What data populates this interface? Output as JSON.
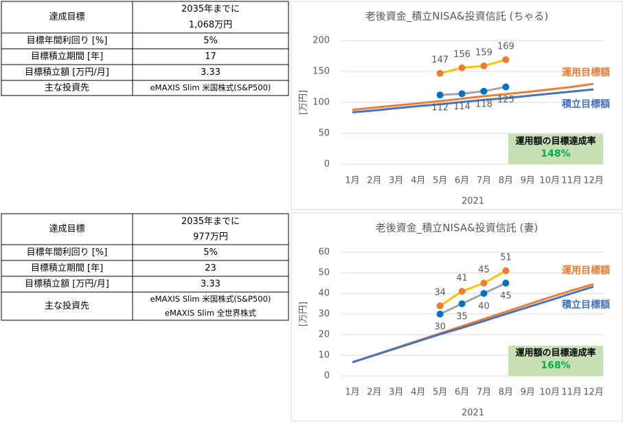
{
  "tables": [
    {
      "rows": [
        [
          "達成目標",
          [
            "2035年までに",
            "1,068万円"
          ]
        ],
        [
          "目標年間利回り [%]",
          "5%"
        ],
        [
          "目標積立期間 [年]",
          "17"
        ],
        [
          "目標積立額 [万円/月]",
          "3.33"
        ],
        [
          "主な投資先",
          "eMAXIS Slim 米国株式(S&P500)"
        ]
      ]
    },
    {
      "rows": [
        [
          "達成目標",
          [
            "2035年までに",
            "977万円"
          ]
        ],
        [
          "目標年間利回り [%]",
          "5%"
        ],
        [
          "目標積立期間 [年]",
          "23"
        ],
        [
          "目標積立額 [万円/月]",
          "3.33"
        ],
        [
          "主な投資先",
          [
            "eMAXIS Slim 米国株式(S&P500)",
            "eMAXIS Slim 全世界株式"
          ]
        ]
      ]
    }
  ],
  "chart_data": [
    {
      "type": "line",
      "title": "老後資金_積立NISA&投資信託 (ちゃる)",
      "categories": [
        "1月",
        "2月",
        "3月",
        "4月",
        "5月",
        "6月",
        "7月",
        "8月",
        "9月",
        "10月",
        "11月",
        "12月"
      ],
      "xlabel": "2021",
      "ylabel": "[万円]",
      "ylim": [
        0,
        200
      ],
      "yticks": [
        0,
        50,
        100,
        150,
        200
      ],
      "grid": true,
      "series": [
        {
          "name": "運用目標額",
          "color": "#ed7d31",
          "values": [
            88,
            91.5,
            95,
            98.5,
            102,
            106,
            110,
            113.5,
            117,
            121,
            125,
            130
          ]
        },
        {
          "name": "積立目標額",
          "color": "#4472c4",
          "values": [
            84,
            87,
            90.5,
            94,
            97,
            100.5,
            104,
            107,
            110.5,
            114,
            117.5,
            121
          ]
        },
        {
          "color": "#ffc000",
          "marker_color": "#ed7d31",
          "labels": "above",
          "values": [
            null,
            null,
            null,
            null,
            147,
            156,
            159,
            169,
            null,
            null,
            null,
            null
          ]
        },
        {
          "color": "#a5a5a5",
          "marker_color": "#0070c0",
          "labels": "below",
          "values": [
            null,
            null,
            null,
            null,
            112,
            114,
            118,
            125,
            null,
            null,
            null,
            null
          ]
        }
      ],
      "annotation": {
        "text": "運用額の目標達成率",
        "rate": "148%"
      }
    },
    {
      "type": "line",
      "title": "老後資金_積立NISA&投資信託 (妻)",
      "categories": [
        "1月",
        "2月",
        "3月",
        "4月",
        "5月",
        "6月",
        "7月",
        "8月",
        "9月",
        "10月",
        "11月",
        "12月"
      ],
      "xlabel": "2021",
      "ylabel": "[万円]",
      "ylim": [
        0,
        60
      ],
      "yticks": [
        0,
        10,
        20,
        30,
        40,
        50,
        60
      ],
      "grid": true,
      "series": [
        {
          "name": "運用目標額",
          "color": "#ed7d31",
          "values": [
            6.6,
            10.1,
            13.6,
            17.1,
            20.6,
            24.1,
            27.6,
            31.1,
            34.6,
            38.1,
            41.4,
            44.5
          ]
        },
        {
          "name": "積立目標額",
          "color": "#4472c4",
          "values": [
            6.6,
            10,
            13.4,
            16.8,
            20.2,
            23.3,
            26.6,
            30,
            33.3,
            36.6,
            40,
            43.3
          ]
        },
        {
          "color": "#ffc000",
          "marker_color": "#ed7d31",
          "labels": "above",
          "values": [
            null,
            null,
            null,
            null,
            34,
            41,
            45,
            51,
            null,
            null,
            null,
            null
          ]
        },
        {
          "color": "#a5a5a5",
          "marker_color": "#0070c0",
          "labels": "below",
          "values": [
            null,
            null,
            null,
            null,
            30,
            35,
            40,
            45,
            null,
            null,
            null,
            null
          ]
        }
      ],
      "annotation": {
        "text": "運用額の目標達成率",
        "rate": "168%"
      }
    }
  ]
}
